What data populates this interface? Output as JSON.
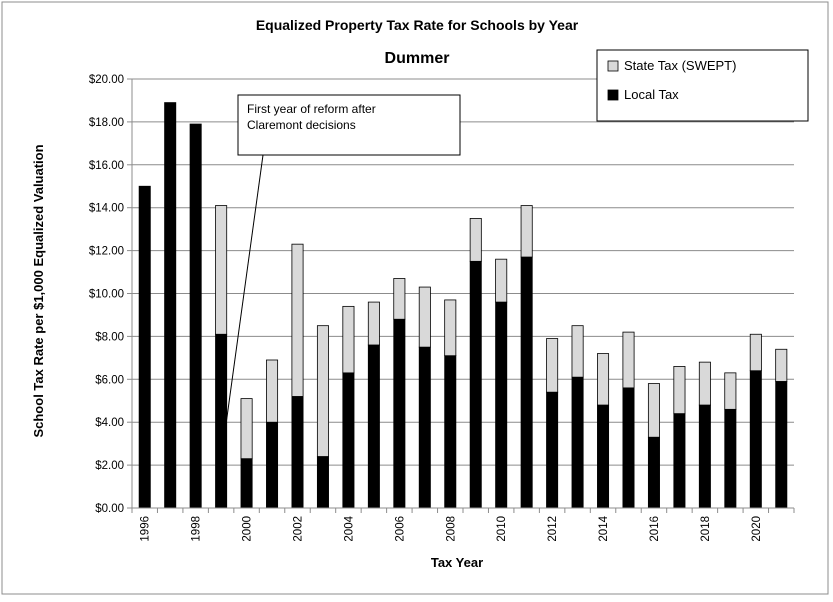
{
  "chart_data": {
    "type": "bar",
    "stacked": true,
    "title": "Equalized Property Tax Rate for Schools by Year",
    "subtitle": "Dummer",
    "xlabel": "Tax Year",
    "ylabel": "School Tax Rate per $1,000 Equalized Valuation",
    "ylim": [
      0,
      20
    ],
    "yticks": [
      "$0.00",
      "$2.00",
      "$4.00",
      "$6.00",
      "$8.00",
      "$10.00",
      "$12.00",
      "$14.00",
      "$16.00",
      "$18.00",
      "$20.00"
    ],
    "grid": true,
    "legend_position": "top-right",
    "categories": [
      1996,
      1997,
      1998,
      1999,
      2000,
      2001,
      2002,
      2003,
      2004,
      2005,
      2006,
      2007,
      2008,
      2009,
      2010,
      2011,
      2012,
      2013,
      2014,
      2015,
      2016,
      2017,
      2018,
      2019,
      2020,
      2021
    ],
    "xtick_labels": [
      "1996",
      "",
      "1998",
      "",
      "2000",
      "",
      "2002",
      "",
      "2004",
      "",
      "2006",
      "",
      "2008",
      "",
      "2010",
      "",
      "2012",
      "",
      "2014",
      "",
      "2016",
      "",
      "2018",
      "",
      "2020",
      ""
    ],
    "series": [
      {
        "name": "Local Tax",
        "color": "#000000",
        "values": [
          15.0,
          18.9,
          17.9,
          8.1,
          2.3,
          4.0,
          5.2,
          2.4,
          6.3,
          7.6,
          8.8,
          7.5,
          7.1,
          11.5,
          9.6,
          11.7,
          5.4,
          6.1,
          4.8,
          5.6,
          3.3,
          4.4,
          4.8,
          4.6,
          6.4,
          5.9
        ]
      },
      {
        "name": "State Tax (SWEPT)",
        "color": "#d9d9d9",
        "values": [
          0,
          0,
          0,
          6.0,
          2.8,
          2.9,
          7.1,
          6.1,
          3.1,
          2.0,
          1.9,
          2.8,
          2.6,
          2.0,
          2.0,
          2.4,
          2.5,
          2.4,
          2.4,
          2.6,
          2.5,
          2.2,
          2.0,
          1.7,
          1.7,
          1.5
        ]
      }
    ],
    "annotations": [
      {
        "lines": [
          "First year of reform after",
          "Claremont decisions"
        ],
        "points_to": 1999,
        "value": 3.6
      }
    ]
  }
}
